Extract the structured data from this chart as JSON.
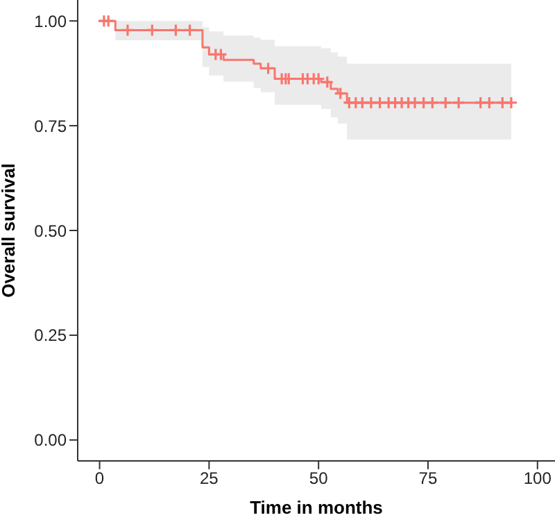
{
  "chart_data": {
    "type": "step",
    "xlabel": "Time in months",
    "ylabel": "Overall survival",
    "xlim": [
      -5,
      104
    ],
    "xticks": [
      0,
      25,
      50,
      75,
      100
    ],
    "ylim": [
      -0.05,
      1.05
    ],
    "yticks": [
      {
        "value": 0,
        "label": "0.00"
      },
      {
        "value": 0.25,
        "label": "0.25"
      },
      {
        "value": 0.5,
        "label": "0.50"
      },
      {
        "value": 0.75,
        "label": "0.75"
      },
      {
        "value": 1,
        "label": "1.00"
      }
    ],
    "grid": false,
    "legend": false,
    "series": [
      {
        "color": "#f8766d",
        "x": [
          0,
          3.6,
          23.5,
          25,
          28.3,
          35.2,
          36.8,
          40,
          50.6,
          52.8,
          54.4,
          56.5,
          94
        ],
        "values": [
          1,
          0.978,
          0.937,
          0.92,
          0.907,
          0.898,
          0.887,
          0.862,
          0.854,
          0.838,
          0.827,
          0.805,
          0.805
        ],
        "lower": [
          1,
          0.954,
          0.89,
          0.87,
          0.855,
          0.84,
          0.83,
          0.8,
          0.79,
          0.77,
          0.755,
          0.717,
          0.717
        ],
        "upper": [
          1,
          1,
          0.985,
          0.975,
          0.965,
          0.96,
          0.955,
          0.94,
          0.935,
          0.925,
          0.915,
          0.898,
          0.898
        ]
      },
      {
        "type": "scatter",
        "color": "#f8766d",
        "marker": "cross",
        "x": [
          1,
          2,
          6.4,
          12,
          17.4,
          20.6,
          26.5,
          27.7,
          38.5,
          41.6,
          42.5,
          43.2,
          46.4,
          47.5,
          48.9,
          50,
          52,
          55,
          57,
          58.5,
          60,
          62,
          64,
          66,
          67.5,
          69,
          70.5,
          72,
          74,
          76,
          79,
          82,
          87,
          89,
          92,
          94
        ],
        "values": [
          1,
          1,
          0.978,
          0.978,
          0.978,
          0.978,
          0.92,
          0.92,
          0.887,
          0.862,
          0.862,
          0.862,
          0.862,
          0.862,
          0.862,
          0.862,
          0.854,
          0.827,
          0.805,
          0.805,
          0.805,
          0.805,
          0.805,
          0.805,
          0.805,
          0.805,
          0.805,
          0.805,
          0.805,
          0.805,
          0.805,
          0.805,
          0.805,
          0.805,
          0.805,
          0.805
        ]
      }
    ]
  }
}
